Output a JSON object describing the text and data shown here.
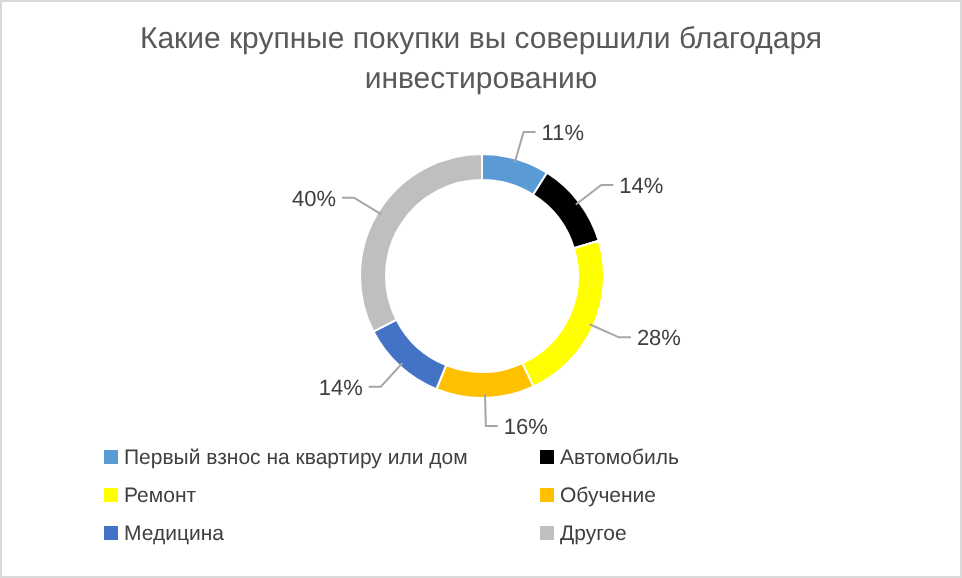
{
  "chart_data": {
    "type": "donut",
    "title": "Какие крупные покупки вы совершили благодаря инвестированию",
    "categories": [
      "Первый взнос на квартиру или дом",
      "Автомобиль",
      "Ремонт",
      "Обучение",
      "Медицина",
      "Другое"
    ],
    "values": [
      11,
      14,
      28,
      16,
      14,
      40
    ],
    "value_labels": [
      "11%",
      "14%",
      "28%",
      "16%",
      "14%",
      "40%"
    ],
    "colors": [
      "#5b9bd5",
      "#000000",
      "#ffff00",
      "#ffc000",
      "#4472c4",
      "#bfbfbf"
    ],
    "legend": "bottom"
  }
}
